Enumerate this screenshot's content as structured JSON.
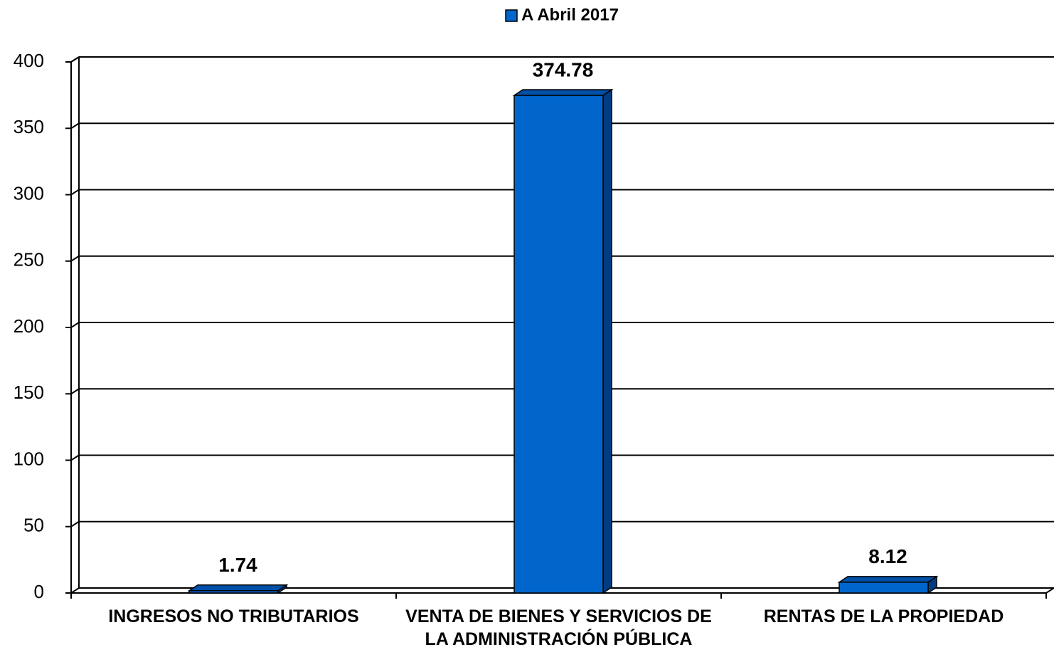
{
  "chart_data": {
    "type": "bar",
    "categories": [
      "INGRESOS NO TRIBUTARIOS",
      "VENTA DE BIENES Y SERVICIOS DE LA ADMINISTRACIÓN PÚBLICA",
      "RENTAS DE LA PROPIEDAD"
    ],
    "series": [
      {
        "name": "A Abril 2017",
        "color": "#0066cc",
        "values": [
          1.74,
          374.78,
          8.12
        ]
      }
    ],
    "ylim": [
      0,
      400
    ],
    "yticks": [
      0,
      50,
      100,
      150,
      200,
      250,
      300,
      350,
      400
    ],
    "grid": true,
    "legend": "top"
  }
}
